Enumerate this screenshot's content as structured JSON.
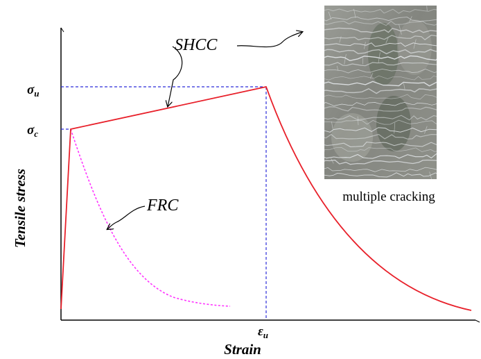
{
  "axis_labels": {
    "x": "Strain",
    "y": "Tensile stress"
  },
  "tick_labels": {
    "sigma_u": {
      "base": "σ",
      "sub": "u"
    },
    "sigma_c": {
      "base": "σ",
      "sub": "c"
    },
    "epsilon_u": {
      "base": "ε",
      "sub": "u"
    }
  },
  "annotations": {
    "shcc": "SHCC",
    "frc": "FRC",
    "photo_caption": "multiple cracking"
  },
  "colors": {
    "axis": "#000000",
    "shcc_curve": "#e8202a",
    "frc_curve": "#ff33ff",
    "dashed_guides": "#2b2bd9",
    "photo_base": "#8a8b86"
  },
  "chart_data": {
    "type": "line",
    "title": "",
    "xlabel": "Strain",
    "ylabel": "Tensile stress",
    "x_ticks": [
      "ε_u"
    ],
    "y_ticks": [
      "σ_u",
      "σ_c"
    ],
    "series": [
      {
        "name": "SHCC",
        "style": "solid",
        "shape": "linear rise to σ_c, strain-hardening to σ_u at ε_u, then softening decay"
      },
      {
        "name": "FRC",
        "style": "dotted",
        "shape": "linear rise to σ_c, then immediate softening decay"
      }
    ],
    "grid": false
  }
}
